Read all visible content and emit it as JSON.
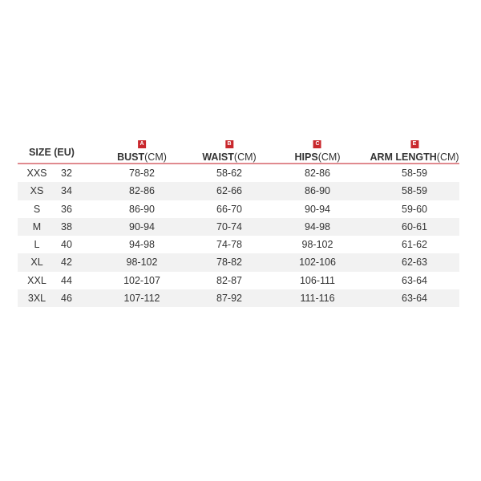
{
  "headers": {
    "size": "SIZE (EU)",
    "columns": [
      {
        "badge": "A",
        "label": "BUST",
        "unit": "(CM)"
      },
      {
        "badge": "B",
        "label": "WAIST",
        "unit": "(CM)"
      },
      {
        "badge": "C",
        "label": "HIPS",
        "unit": "(CM)"
      },
      {
        "badge": "E",
        "label": "ARM LENGTH",
        "unit": "(CM)"
      }
    ]
  },
  "accent": "#c9282d",
  "rows": [
    [
      "XXS",
      "32",
      "78-82",
      "58-62",
      "82-86",
      "58-59"
    ],
    [
      "XS",
      "34",
      "82-86",
      "62-66",
      "86-90",
      "58-59"
    ],
    [
      "S",
      "36",
      "86-90",
      "66-70",
      "90-94",
      "59-60"
    ],
    [
      "M",
      "38",
      "90-94",
      "70-74",
      "94-98",
      "60-61"
    ],
    [
      "L",
      "40",
      "94-98",
      "74-78",
      "98-102",
      "61-62"
    ],
    [
      "XL",
      "42",
      "98-102",
      "78-82",
      "102-106",
      "62-63"
    ],
    [
      "XXL",
      "44",
      "102-107",
      "82-87",
      "106-111",
      "63-64"
    ],
    [
      "3XL",
      "46",
      "107-112",
      "87-92",
      "111-116",
      "63-64"
    ]
  ]
}
